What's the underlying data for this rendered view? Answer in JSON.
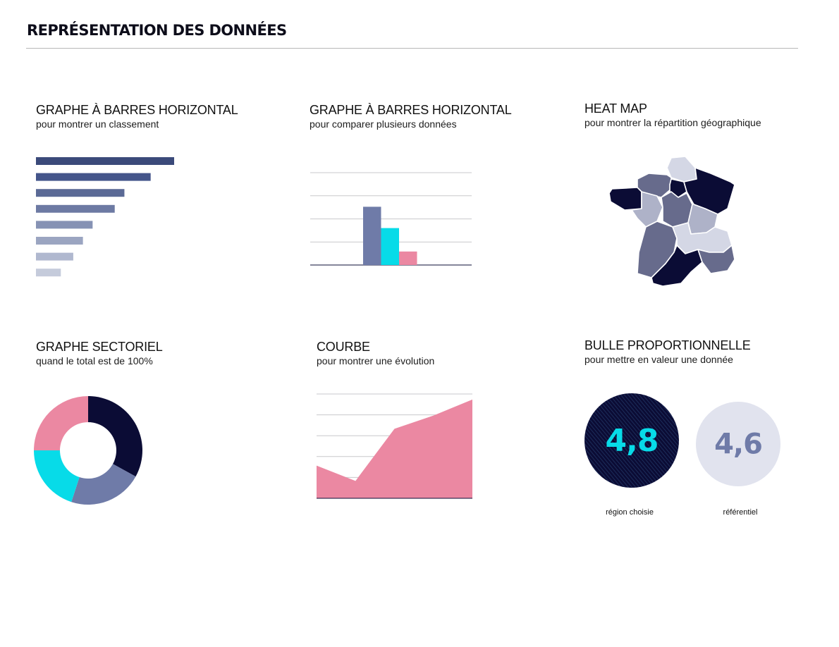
{
  "page": {
    "title": "REPRÉSENTATION DES DONNÉES"
  },
  "colors": {
    "navy": "#0b0c35",
    "slate": "#6f7ba8",
    "cyan": "#07dbe8",
    "pink": "#eb88a2",
    "gridline": "#c8c8cc",
    "bubble_light": "#e1e3ee"
  },
  "panels": {
    "hbar": {
      "title": "GRAPHE À BARRES HORIZONTAL",
      "subtitle": "pour montrer un classement"
    },
    "vbar": {
      "title": "GRAPHE À BARRES HORIZONTAL",
      "subtitle": "pour comparer plusieurs données"
    },
    "heatmap": {
      "title": "HEAT MAP",
      "subtitle": "pour montrer la répartition géographique"
    },
    "pie": {
      "title": "GRAPHE SECTORIEL",
      "subtitle": "quand le total est de 100%"
    },
    "line": {
      "title": "COURBE",
      "subtitle": "pour montrer une évolution"
    },
    "bubble": {
      "title": "BULLE PROPORTIONNELLE",
      "subtitle": "pour mettre en valeur une donnée"
    }
  },
  "chart_data": [
    {
      "type": "bar",
      "orientation": "horizontal",
      "values": [
        100,
        83,
        64,
        57,
        41,
        34,
        27,
        18
      ],
      "colors": [
        "#3b4a7a",
        "#44558a",
        "#5b6a96",
        "#6d7aa3",
        "#8692b4",
        "#9ba5c1",
        "#b0b8cf",
        "#c5cbdb"
      ],
      "xlim": [
        0,
        100
      ]
    },
    {
      "type": "bar",
      "values": [
        82,
        52,
        19
      ],
      "colors": [
        "#6f7ba8",
        "#07dbe8",
        "#eb88a2"
      ],
      "ylim": [
        0,
        130
      ],
      "grid": true
    },
    {
      "type": "heatmap",
      "regions": [
        {
          "name": "Hauts-de-France",
          "level": 1
        },
        {
          "name": "Normandie",
          "level": 3
        },
        {
          "name": "Bretagne",
          "level": 4
        },
        {
          "name": "Île-de-France",
          "level": 4
        },
        {
          "name": "Grand Est",
          "level": 4
        },
        {
          "name": "Pays de la Loire",
          "level": 2
        },
        {
          "name": "Centre-Val de Loire",
          "level": 3
        },
        {
          "name": "Bourgogne-Franche-Comté",
          "level": 2
        },
        {
          "name": "Nouvelle-Aquitaine",
          "level": 3
        },
        {
          "name": "Auvergne-Rhône-Alpes",
          "level": 1
        },
        {
          "name": "Occitanie",
          "level": 4
        },
        {
          "name": "Provence-Alpes-Côte d'Azur",
          "level": 3
        }
      ],
      "level_colors": [
        "#d4d7e5",
        "#aeb2c8",
        "#676b8c",
        "#0b0c35"
      ]
    },
    {
      "type": "pie",
      "donut": true,
      "values": [
        33,
        22,
        20,
        25
      ],
      "colors": [
        "#0b0c35",
        "#6f7ba8",
        "#07dbe8",
        "#eb88a2"
      ]
    },
    {
      "type": "area",
      "x": [
        0,
        1,
        2,
        3,
        4
      ],
      "values": [
        47,
        25,
        100,
        119,
        142
      ],
      "ylim": [
        0,
        150
      ],
      "color": "#eb88a2",
      "grid": true
    },
    {
      "type": "bubble",
      "items": [
        {
          "value": "4,8",
          "label": "région choisie",
          "fill": "#0b0c35",
          "text_color": "#07dbe8",
          "hatched": true
        },
        {
          "value": "4,6",
          "label": "référentiel",
          "fill": "#e1e3ee",
          "text_color": "#6f7ba8",
          "hatched": false
        }
      ]
    }
  ]
}
